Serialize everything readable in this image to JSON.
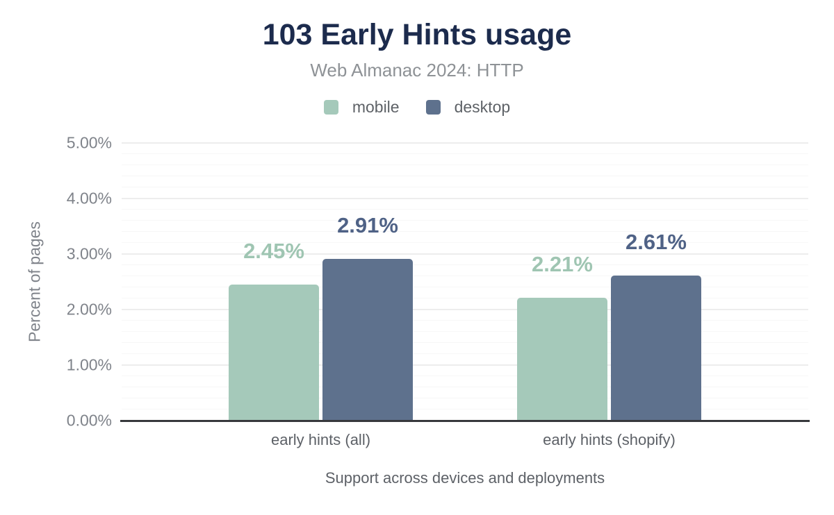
{
  "header": {
    "title": "103 Early Hints usage",
    "subtitle": "Web Almanac 2024: HTTP"
  },
  "chart_data": {
    "type": "bar",
    "title": "103 Early Hints usage",
    "subtitle": "Web Almanac 2024: HTTP",
    "categories": [
      "early hints (all)",
      "early hints (shopify)"
    ],
    "series": [
      {
        "name": "mobile",
        "values": [
          2.45,
          2.21
        ],
        "color": "#a5c9ba",
        "label_color": "#9fc5b2"
      },
      {
        "name": "desktop",
        "values": [
          2.91,
          2.61
        ],
        "color": "#5e718d",
        "label_color": "#4f6286"
      }
    ],
    "data_labels": [
      [
        "2.45%",
        "2.21%"
      ],
      [
        "2.91%",
        "2.61%"
      ]
    ],
    "xlabel": "Support across devices and deployments",
    "ylabel": "Percent of pages",
    "ylim": [
      0,
      5
    ],
    "yticks": [
      "0.00%",
      "1.00%",
      "2.00%",
      "3.00%",
      "4.00%",
      "5.00%"
    ],
    "ytick_values": [
      0,
      1,
      2,
      3,
      4,
      5
    ],
    "minor_tick_step": 0.2,
    "grid": "horizontal",
    "legend_position": "top",
    "colors": {
      "title": "#1c2b4d",
      "subtitle": "#8e9296",
      "axis_line": "#37393c",
      "major_grid": "#ededed",
      "minor_grid": "#f7f7f7",
      "tick_text": "#7f838a",
      "category_text": "#5d6167"
    }
  }
}
